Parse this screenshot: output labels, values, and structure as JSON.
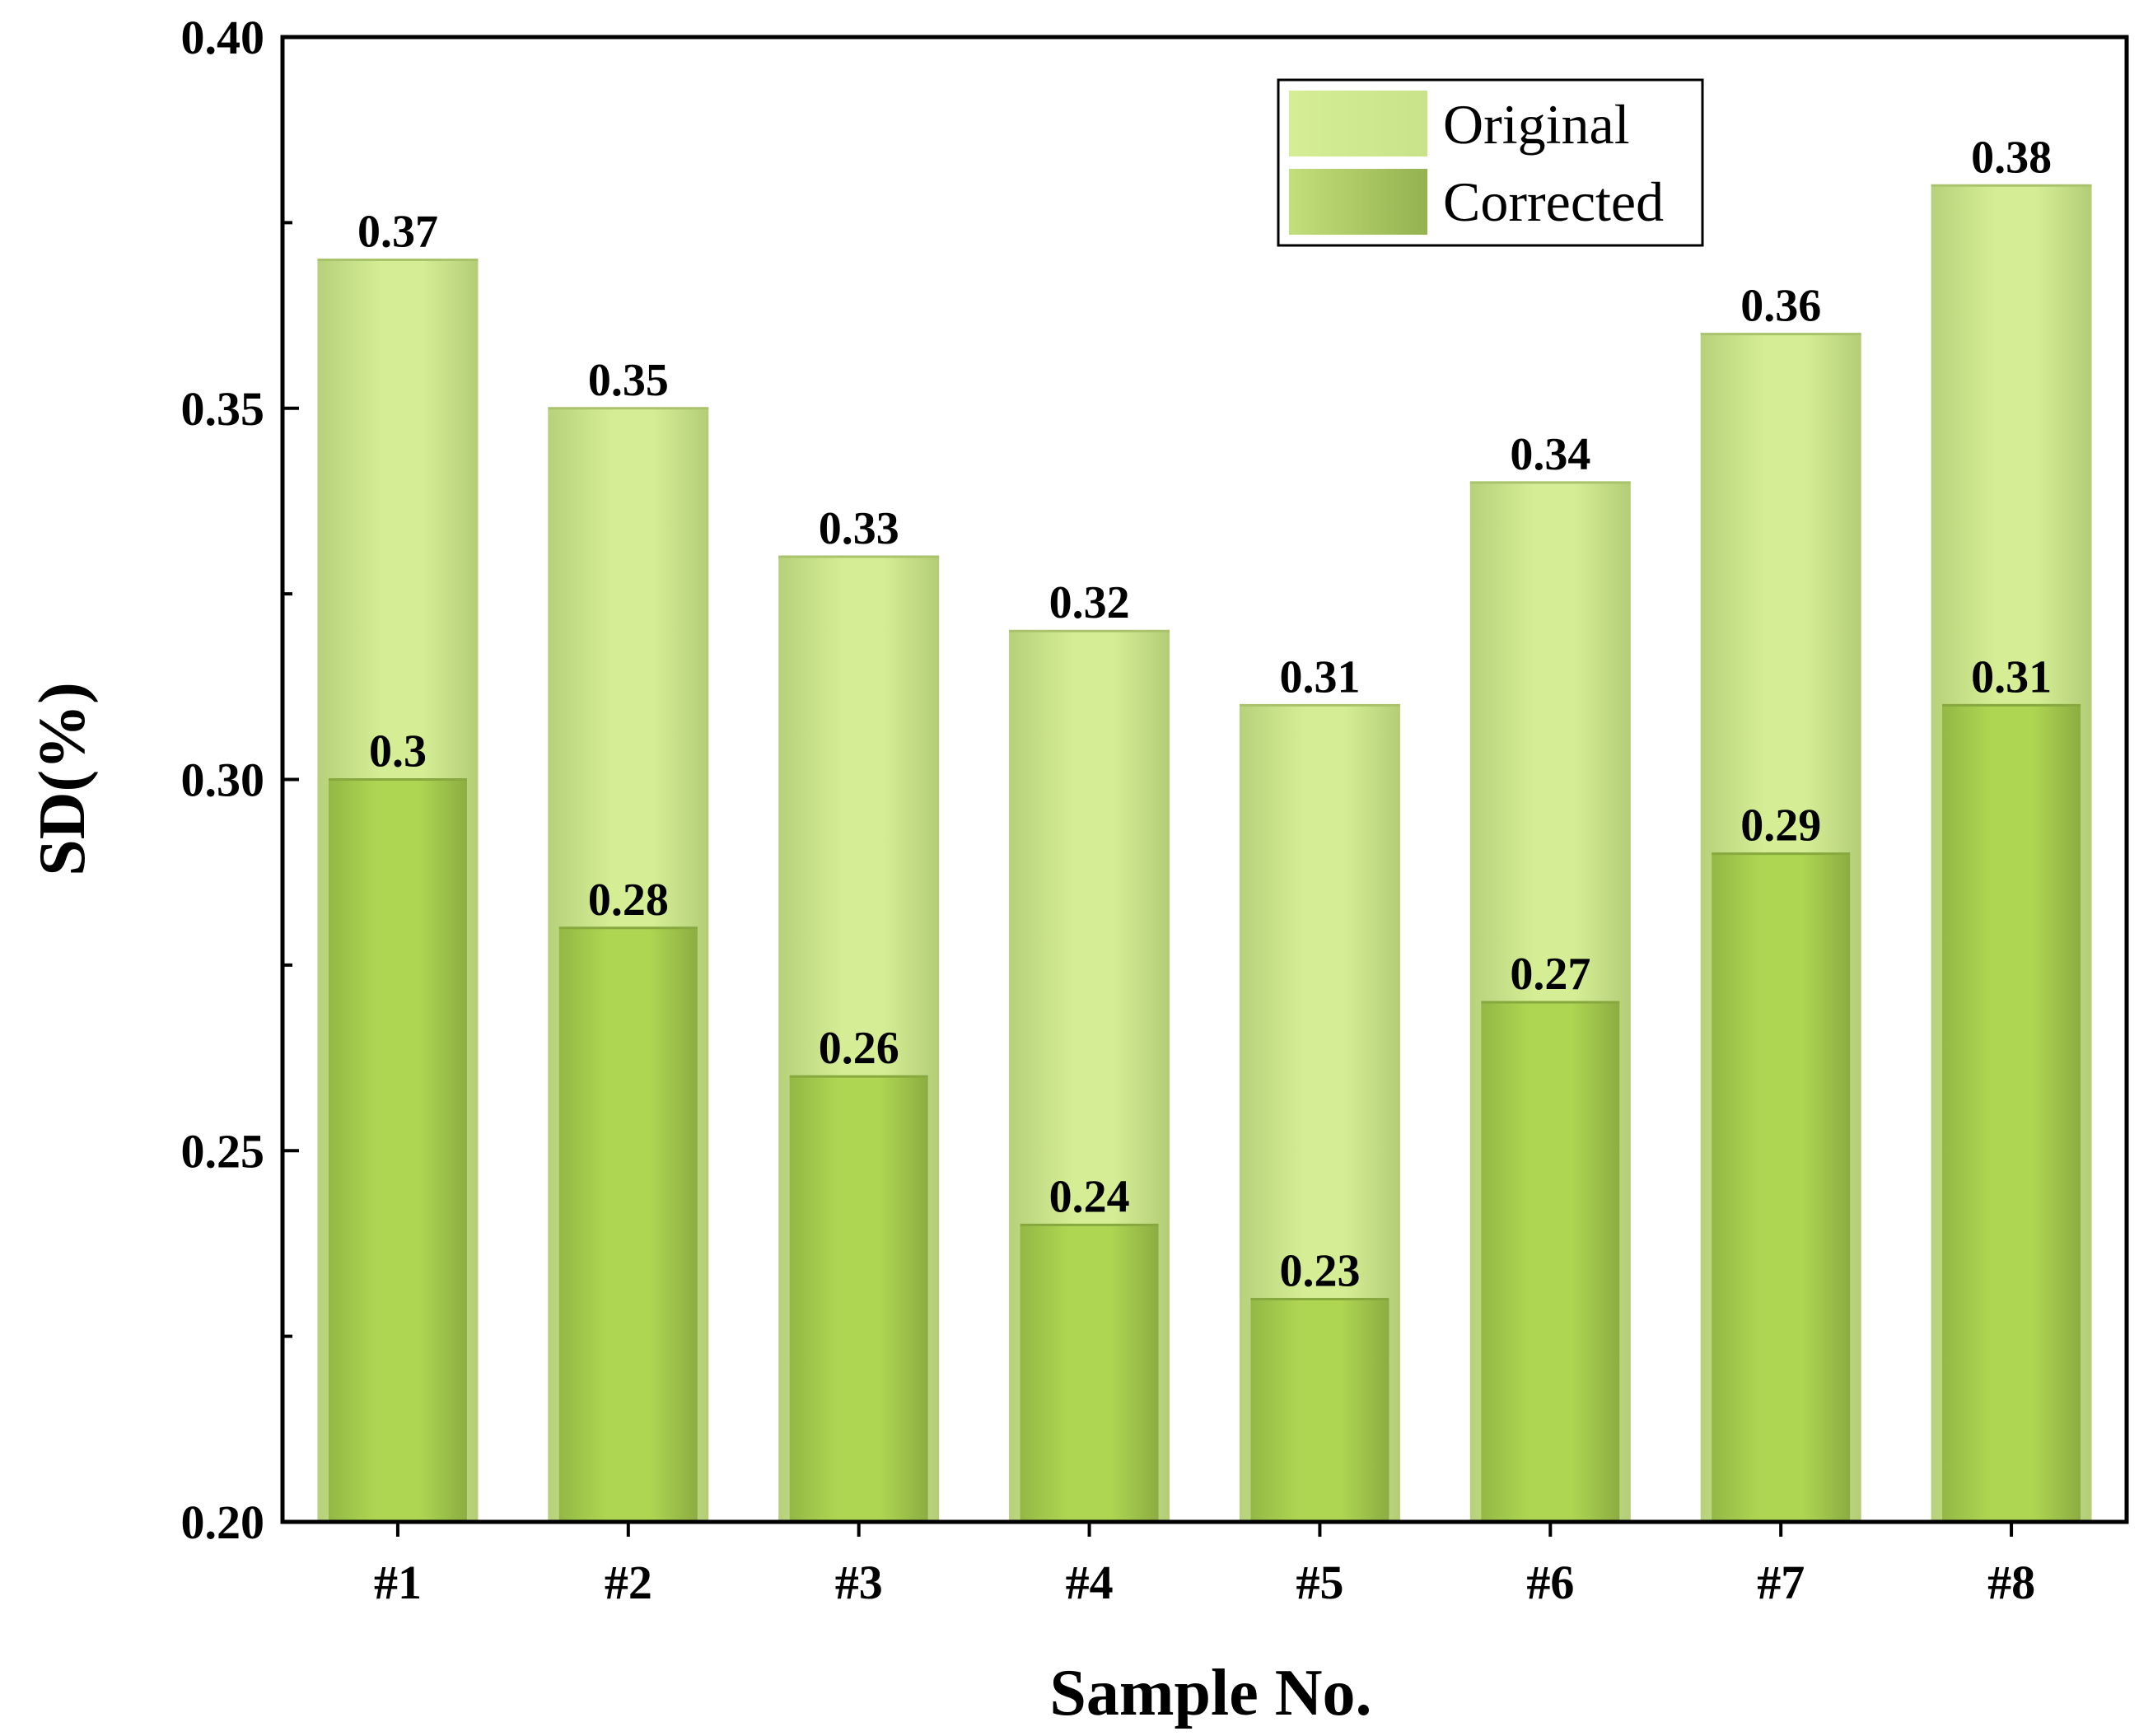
{
  "chart_data": {
    "type": "bar",
    "categories": [
      "#1",
      "#2",
      "#3",
      "#4",
      "#5",
      "#6",
      "#7",
      "#8"
    ],
    "series": [
      {
        "name": "Original",
        "values": [
          0.37,
          0.35,
          0.33,
          0.32,
          0.31,
          0.34,
          0.36,
          0.38
        ],
        "labels": [
          "0.37",
          "0.35",
          "0.33",
          "0.32",
          "0.31",
          "0.34",
          "0.36",
          "0.38"
        ],
        "color": "#d3eb8f"
      },
      {
        "name": "Corrected",
        "values": [
          0.3,
          0.28,
          0.26,
          0.24,
          0.23,
          0.27,
          0.29,
          0.31
        ],
        "labels": [
          "0.3",
          "0.28",
          "0.26",
          "0.24",
          "0.23",
          "0.27",
          "0.29",
          "0.31"
        ],
        "color": "#a6cc4c"
      }
    ],
    "xlabel": "Sample No.",
    "ylabel": "SD(%)",
    "ylim": [
      0.2,
      0.4
    ],
    "yticks": [
      "0.20",
      "0.25",
      "0.30",
      "0.35",
      "0.40"
    ],
    "grid": false,
    "legend_position": "top-right",
    "bars_overlapped": true
  }
}
